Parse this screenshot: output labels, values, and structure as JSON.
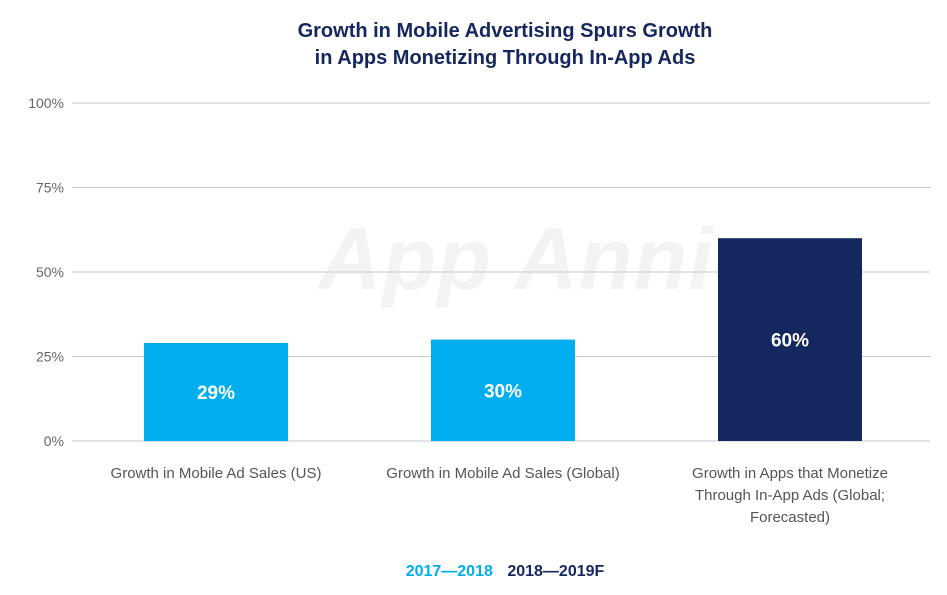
{
  "chart_data": {
    "type": "bar",
    "title": "Growth in Mobile Advertising Spurs Growth in Apps Monetizing Through In-App Ads",
    "title_lines": [
      "Growth in Mobile Advertising Spurs Growth",
      "in Apps Monetizing Through In-App Ads"
    ],
    "categories": [
      "Growth in Mobile Ad Sales (US)",
      "Growth in Mobile Ad Sales (Global)",
      "Growth in Apps that Monetize Through In-App Ads (Global; Forecasted)"
    ],
    "category_label_lines": [
      [
        "Growth in Mobile Ad Sales (US)"
      ],
      [
        "Growth in Mobile Ad Sales (Global)"
      ],
      [
        "Growth in Apps that Monetize",
        "Through In-App Ads (Global;",
        "Forecasted)"
      ]
    ],
    "values": [
      29,
      30,
      60
    ],
    "data_labels": [
      "29%",
      "30%",
      "60%"
    ],
    "bar_series": [
      "2017—2018",
      "2017—2018",
      "2018—2019F"
    ],
    "yticks": [
      "0%",
      "25%",
      "50%",
      "75%",
      "100%"
    ],
    "ylim": [
      0,
      100
    ],
    "grid": true,
    "legend": {
      "placement": "bottom-center",
      "items": [
        {
          "name": "2017—2018",
          "color": "#00aeef"
        },
        {
          "name": "2018—2019F",
          "color": "#14275e"
        }
      ]
    },
    "watermark": "App Annie"
  },
  "colors": {
    "title": "#14275e",
    "bar_light": "#00aeef",
    "bar_dark": "#14275e",
    "grid": "#c8c8c8",
    "axis_text": "#666666"
  }
}
